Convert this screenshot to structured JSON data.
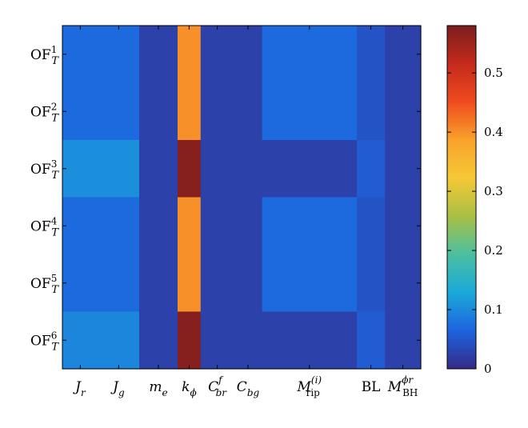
{
  "chart_data": {
    "type": "heatmap",
    "title": "",
    "xlabel": "",
    "ylabel": "",
    "x_tick_labels": [
      {
        "main": "J",
        "sub": "r",
        "sup": ""
      },
      {
        "main": "J",
        "sub": "g",
        "sup": ""
      },
      {
        "main": "m",
        "sub": "e",
        "sup": ""
      },
      {
        "main": "k",
        "sub": "ϕ",
        "sup": ""
      },
      {
        "main": "C",
        "sub": "br",
        "sup": "f"
      },
      {
        "main": "C",
        "sub": "bg",
        "sup": ""
      },
      {
        "main": "M",
        "sub": "rip",
        "sup": "(i)"
      },
      {
        "main": "BL",
        "sub": "",
        "sup": ""
      },
      {
        "main": "M",
        "sub": "BH",
        "sup": "ϕr"
      }
    ],
    "y_tick_labels": [
      {
        "main": "OF",
        "sub": "T",
        "sup": "1"
      },
      {
        "main": "OF",
        "sub": "T",
        "sup": "2"
      },
      {
        "main": "OF",
        "sub": "T",
        "sup": "3"
      },
      {
        "main": "OF",
        "sub": "T",
        "sup": "4"
      },
      {
        "main": "OF",
        "sub": "T",
        "sup": "5"
      },
      {
        "main": "OF",
        "sub": "T",
        "sup": "6"
      }
    ],
    "column_edges": [
      0,
      0.7,
      1.5,
      2.25,
      2.7,
      3.35,
      3.9,
      5.75,
      6.3,
      7.0
    ],
    "values": [
      [
        0.07,
        0.07,
        0.025,
        0.4,
        0.025,
        0.025,
        0.07,
        0.045,
        0.025
      ],
      [
        0.07,
        0.07,
        0.025,
        0.4,
        0.025,
        0.025,
        0.07,
        0.045,
        0.025
      ],
      [
        0.105,
        0.105,
        0.025,
        0.57,
        0.025,
        0.025,
        0.025,
        0.055,
        0.025
      ],
      [
        0.07,
        0.07,
        0.025,
        0.4,
        0.025,
        0.025,
        0.07,
        0.045,
        0.025
      ],
      [
        0.07,
        0.07,
        0.025,
        0.4,
        0.025,
        0.025,
        0.07,
        0.045,
        0.025
      ],
      [
        0.095,
        0.095,
        0.025,
        0.57,
        0.025,
        0.025,
        0.025,
        0.055,
        0.025
      ]
    ],
    "colorbar": {
      "min": 0,
      "max": 0.58,
      "ticks": [
        0,
        0.1,
        0.2,
        0.3,
        0.4,
        0.5
      ],
      "tick_labels": [
        "0",
        "0.1",
        "0.2",
        "0.3",
        "0.4",
        "0.5"
      ],
      "colormap": "parula-like",
      "stops": [
        "#352a87",
        "#1d64e0",
        "#1aa9d8",
        "#4cbfa0",
        "#a9bf45",
        "#f5c936",
        "#f9a22a",
        "#f04b1f",
        "#c42a1c",
        "#7a1e1e"
      ]
    },
    "grid": false,
    "legend": "colorbar-right"
  }
}
